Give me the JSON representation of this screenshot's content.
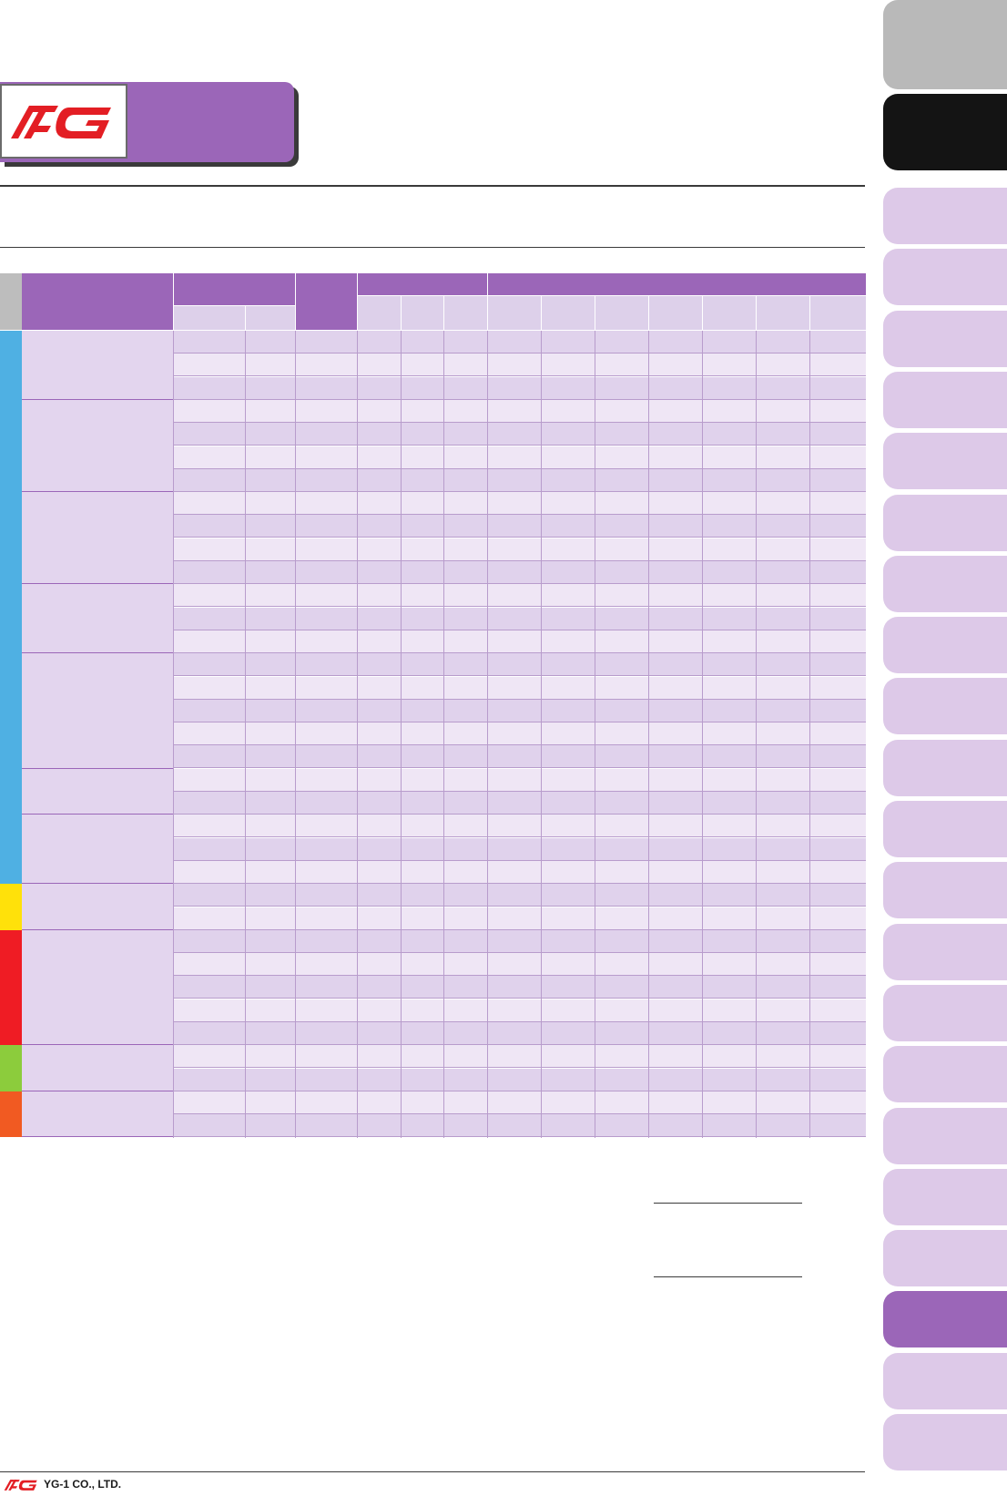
{
  "brand": {
    "logo_text": "YG",
    "logo_color": "#e31e24",
    "accent": "#9b66b8"
  },
  "footer": {
    "company": "YG-1 CO., LTD."
  },
  "table": {
    "groups": [
      {
        "rows": 3,
        "color": "#4fb0e3"
      },
      {
        "rows": 4,
        "color": "#4fb0e3"
      },
      {
        "rows": 4,
        "color": "#4fb0e3"
      },
      {
        "rows": 3,
        "color": "#4fb0e3"
      },
      {
        "rows": 5,
        "color": "#4fb0e3"
      },
      {
        "rows": 2,
        "color": "#4fb0e3"
      },
      {
        "rows": 3,
        "color": "#4fb0e3"
      },
      {
        "rows": 2,
        "color": "#ffe10a"
      },
      {
        "rows": 5,
        "color": "#ef1c24"
      },
      {
        "rows": 2,
        "color": "#8ccc3c"
      },
      {
        "rows": 2,
        "color": "#f15a22"
      }
    ]
  },
  "side_tabs": {
    "active_index": 20,
    "count": 23
  }
}
